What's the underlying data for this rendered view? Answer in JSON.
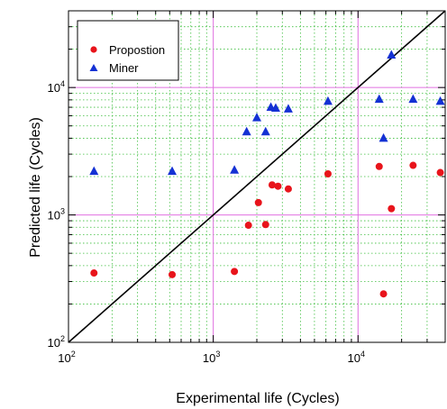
{
  "chart_data": {
    "type": "scatter",
    "title": "",
    "xlabel": "Experimental life (Cycles)",
    "ylabel": "Predicted life (Cycles)",
    "xscale": "log",
    "yscale": "log",
    "xlim": [
      100,
      40000
    ],
    "ylim": [
      100,
      40000
    ],
    "ticks": [
      "10^2",
      "10^3",
      "10^4"
    ],
    "grid": true,
    "legend_position": "top-left",
    "reference_line": "y = x",
    "series": [
      {
        "name": "Propostion",
        "marker": "circle",
        "color": "#e8141b",
        "points": [
          [
            150,
            350
          ],
          [
            520,
            340
          ],
          [
            1400,
            360
          ],
          [
            1750,
            830
          ],
          [
            2050,
            1250
          ],
          [
            2300,
            840
          ],
          [
            2550,
            1720
          ],
          [
            2800,
            1680
          ],
          [
            3300,
            1600
          ],
          [
            6200,
            2100
          ],
          [
            14000,
            2400
          ],
          [
            15000,
            240
          ],
          [
            17000,
            1120
          ],
          [
            24000,
            2450
          ],
          [
            37000,
            2150
          ]
        ]
      },
      {
        "name": "Miner",
        "marker": "triangle",
        "color": "#1431d4",
        "points": [
          [
            150,
            2200
          ],
          [
            520,
            2200
          ],
          [
            1400,
            2250
          ],
          [
            1700,
            4500
          ],
          [
            2000,
            5800
          ],
          [
            2300,
            4500
          ],
          [
            2500,
            7000
          ],
          [
            2700,
            6900
          ],
          [
            3300,
            6800
          ],
          [
            6200,
            7800
          ],
          [
            14000,
            8100
          ],
          [
            15000,
            4000
          ],
          [
            17000,
            18000
          ],
          [
            24000,
            8100
          ],
          [
            37000,
            7800
          ]
        ]
      }
    ]
  }
}
